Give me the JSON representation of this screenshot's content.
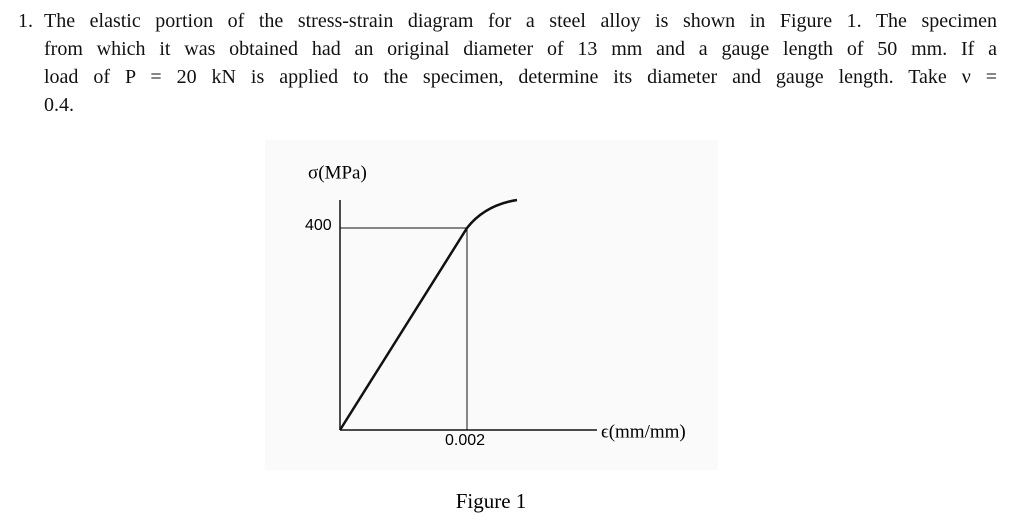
{
  "problem": {
    "number": "1.",
    "lines": [
      "The elastic portion of the stress-strain diagram for a steel alloy is shown in Figure 1. The specimen",
      "from which it was obtained had an original diameter of 13 mm and a gauge length of 50 mm. If a",
      "load of P = 20 kN is applied to the specimen, determine its diameter and gauge length. Take ν =",
      "0.4."
    ]
  },
  "figure": {
    "y_axis_label": "σ(MPa)",
    "y_tick": "400",
    "x_tick": "0.002",
    "x_axis_label": "ϵ(mm/mm)",
    "caption": "Figure 1"
  }
}
